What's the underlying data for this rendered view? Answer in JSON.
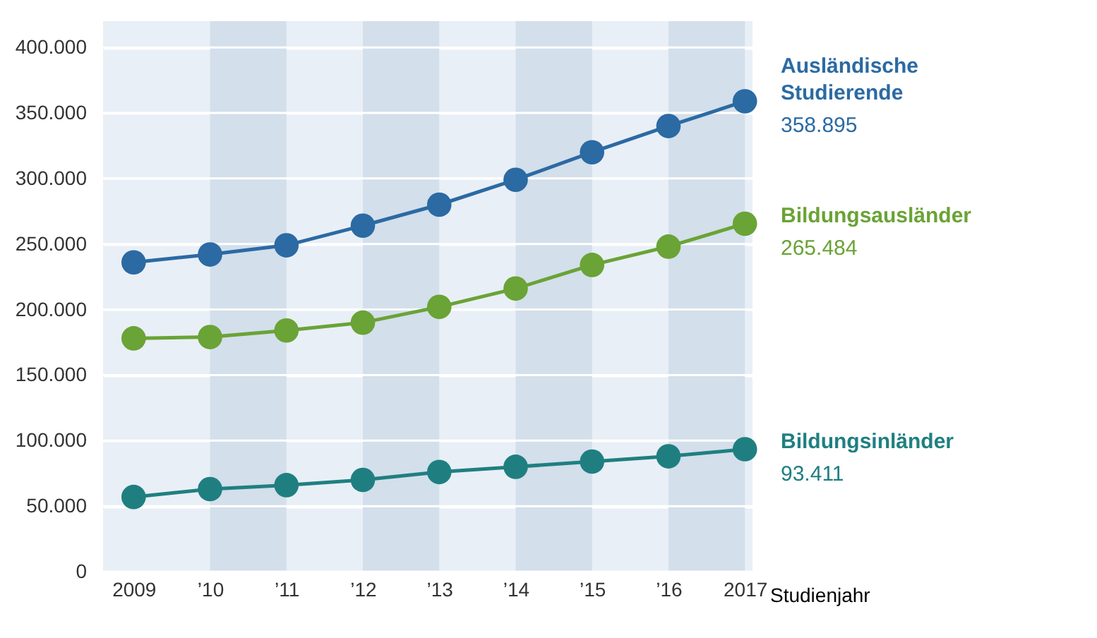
{
  "chart_data": {
    "type": "line",
    "xlabel": "Studienjahr",
    "x": [
      2009,
      2010,
      2011,
      2012,
      2013,
      2014,
      2015,
      2016,
      2017
    ],
    "xlim": [
      2008.6,
      2017.1
    ],
    "xticks": [
      2009,
      {
        "value": 2010,
        "label": "’10"
      },
      {
        "value": 2011,
        "label": "’11"
      },
      {
        "value": 2012,
        "label": "’12"
      },
      {
        "value": 2013,
        "label": "’13"
      },
      {
        "value": 2014,
        "label": "’14"
      },
      {
        "value": 2015,
        "label": "’15"
      },
      {
        "value": 2016,
        "label": "’16"
      },
      2017
    ],
    "ylim": [
      0,
      420000
    ],
    "yticks": [
      0,
      {
        "value": 50000,
        "label": "50.000"
      },
      {
        "value": 100000,
        "label": "100.000"
      },
      {
        "value": 150000,
        "label": "150.000"
      },
      {
        "value": 200000,
        "label": "200.000"
      },
      {
        "value": 250000,
        "label": "250.000"
      },
      {
        "value": 300000,
        "label": "300.000"
      },
      {
        "value": 350000,
        "label": "350.000"
      },
      {
        "value": 400000,
        "label": "400.000"
      }
    ],
    "series": [
      {
        "name": "Ausländische Studierende",
        "color": "#2b6aa3",
        "values": [
          236000,
          242000,
          249000,
          264000,
          280000,
          299000,
          320000,
          340000,
          358895
        ],
        "value_labels": [
          null,
          null,
          null,
          null,
          null,
          null,
          null,
          null,
          "358.895"
        ]
      },
      {
        "name": "Bildungsausländer",
        "color": "#6aa336",
        "values": [
          178000,
          179000,
          184000,
          190000,
          202000,
          216000,
          234000,
          248000,
          265484
        ],
        "value_labels": [
          null,
          null,
          null,
          null,
          null,
          null,
          null,
          null,
          "265.484"
        ]
      },
      {
        "name": "Bildungsinländer",
        "color": "#1f7f80",
        "values": [
          57000,
          63000,
          66000,
          70000,
          76000,
          80000,
          84000,
          88000,
          93411
        ],
        "value_labels": [
          null,
          null,
          null,
          null,
          null,
          null,
          null,
          null,
          "93.411"
        ]
      }
    ],
    "bands": [
      {
        "axis": "x",
        "from": 2010,
        "to": 2011,
        "color": "#d3dfeb"
      },
      {
        "axis": "x",
        "from": 2012,
        "to": 2013,
        "color": "#d3dfeb"
      },
      {
        "axis": "x",
        "from": 2014,
        "to": 2015,
        "color": "#d3dfeb"
      },
      {
        "axis": "x",
        "from": 2016,
        "to": 2017,
        "color": "#d3dfeb"
      }
    ],
    "grid": "y",
    "marker": "circle",
    "line_style": "solid"
  }
}
